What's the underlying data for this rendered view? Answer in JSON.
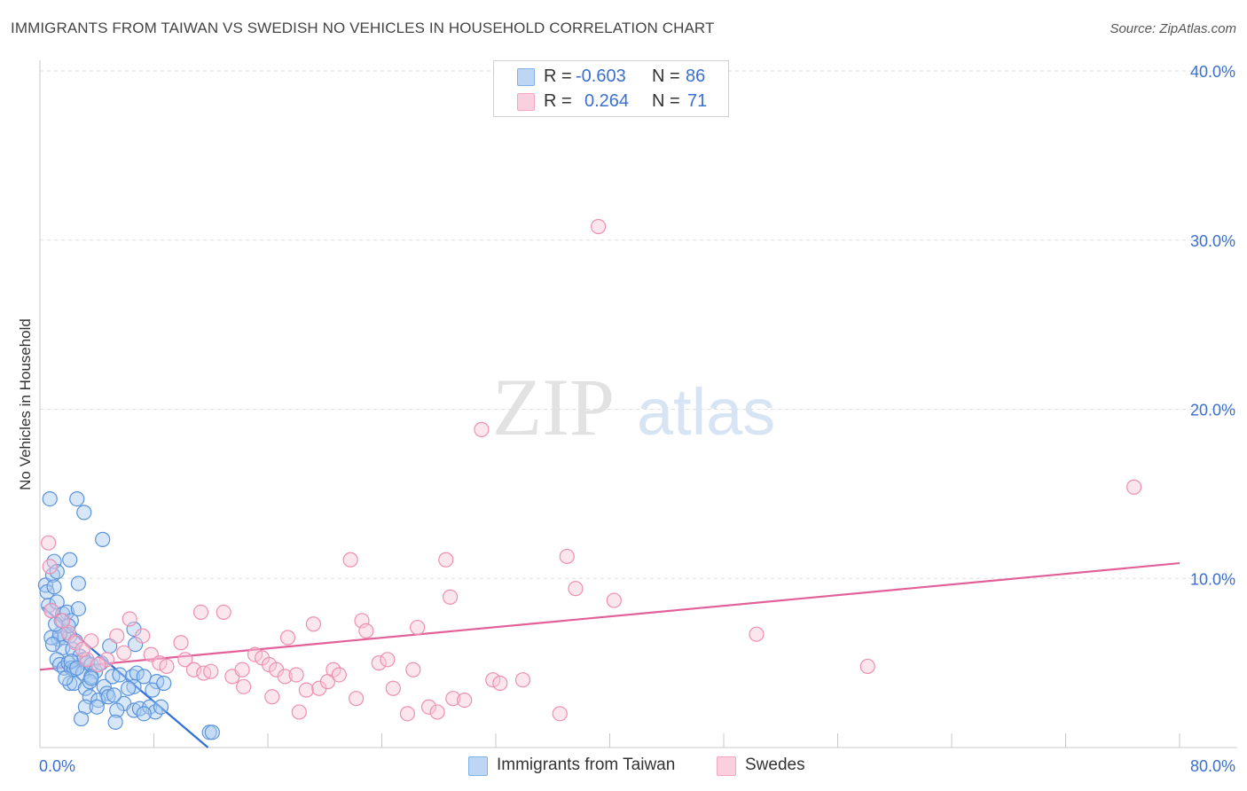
{
  "title": "IMMIGRANTS FROM TAIWAN VS SWEDISH NO VEHICLES IN HOUSEHOLD CORRELATION CHART",
  "source": "Source: ZipAtlas.com",
  "watermark": {
    "zip": "ZIP",
    "atlas": "atlas"
  },
  "legend": {
    "rows": [
      {
        "r_label": "R =",
        "r_value": "-0.603",
        "n_label": "N =",
        "n_value": "86",
        "color": "#7fb0e8"
      },
      {
        "r_label": "R =",
        "r_value": "0.264",
        "n_label": "N =",
        "n_value": "71",
        "color": "#f4a6c0"
      }
    ]
  },
  "bottom_legend": [
    {
      "label": "Immigrants from Taiwan",
      "color": "#7fb0e8"
    },
    {
      "label": "Swedes",
      "color": "#f4a6c0"
    }
  ],
  "chart_data": {
    "type": "scatter",
    "title": "IMMIGRANTS FROM TAIWAN VS SWEDISH NO VEHICLES IN HOUSEHOLD CORRELATION CHART",
    "xlabel": "",
    "ylabel": "No Vehicles in Household",
    "xlim": [
      0,
      80
    ],
    "ylim": [
      0,
      40
    ],
    "x_tick_labels": [
      {
        "value": 0,
        "label": "0.0%"
      },
      {
        "value": 80,
        "label": "80.0%"
      }
    ],
    "y_tick_labels": [
      {
        "value": 10,
        "label": "10.0%"
      },
      {
        "value": 20,
        "label": "20.0%"
      },
      {
        "value": 30,
        "label": "30.0%"
      },
      {
        "value": 40,
        "label": "40.0%"
      }
    ],
    "x_minor_ticks": [
      0,
      8,
      16,
      24,
      32,
      40,
      48,
      56,
      64,
      72,
      80
    ],
    "grid": true,
    "series": [
      {
        "name": "Immigrants from Taiwan",
        "stroke": "#5a93dc",
        "fill": "#a9c9f0",
        "trend": {
          "x": [
            0.2,
            11.8
          ],
          "y": [
            8.3,
            0.0
          ],
          "color": "#2f6fd6"
        },
        "points": [
          [
            0.4,
            9.6
          ],
          [
            0.5,
            9.2
          ],
          [
            0.6,
            8.4
          ],
          [
            0.8,
            8.1
          ],
          [
            0.9,
            10.2
          ],
          [
            1.0,
            11.0
          ],
          [
            0.7,
            14.7
          ],
          [
            1.2,
            10.4
          ],
          [
            1.0,
            9.5
          ],
          [
            1.2,
            8.6
          ],
          [
            1.6,
            7.9
          ],
          [
            1.9,
            8.0
          ],
          [
            2.2,
            7.5
          ],
          [
            2.7,
            8.2
          ],
          [
            2.7,
            9.7
          ],
          [
            2.6,
            14.7
          ],
          [
            3.1,
            13.9
          ],
          [
            2.1,
            11.1
          ],
          [
            4.4,
            12.3
          ],
          [
            1.3,
            6.4
          ],
          [
            1.7,
            6.5
          ],
          [
            2.1,
            6.6
          ],
          [
            1.6,
            5.9
          ],
          [
            2.3,
            5.8
          ],
          [
            2.5,
            6.3
          ],
          [
            2.8,
            5.4
          ],
          [
            3.1,
            5.2
          ],
          [
            3.3,
            5.0
          ],
          [
            1.2,
            5.2
          ],
          [
            1.4,
            4.9
          ],
          [
            1.7,
            4.7
          ],
          [
            2.0,
            5.0
          ],
          [
            2.2,
            4.7
          ],
          [
            2.4,
            4.6
          ],
          [
            3.0,
            4.4
          ],
          [
            3.6,
            4.9
          ],
          [
            3.9,
            4.5
          ],
          [
            3.6,
            4.2
          ],
          [
            2.1,
            3.8
          ],
          [
            2.4,
            3.8
          ],
          [
            3.2,
            3.5
          ],
          [
            3.5,
            3.9
          ],
          [
            4.5,
            3.6
          ],
          [
            4.7,
            3.2
          ],
          [
            3.5,
            3.0
          ],
          [
            4.1,
            2.8
          ],
          [
            4.8,
            3.0
          ],
          [
            3.2,
            2.4
          ],
          [
            4.0,
            2.4
          ],
          [
            5.1,
            4.2
          ],
          [
            5.6,
            4.3
          ],
          [
            6.5,
            4.2
          ],
          [
            6.8,
            4.4
          ],
          [
            7.3,
            4.2
          ],
          [
            6.6,
            3.6
          ],
          [
            6.2,
            3.5
          ],
          [
            8.2,
            3.9
          ],
          [
            7.9,
            3.4
          ],
          [
            5.9,
            2.6
          ],
          [
            6.6,
            2.2
          ],
          [
            7.0,
            2.3
          ],
          [
            7.7,
            2.4
          ],
          [
            8.1,
            2.1
          ],
          [
            8.5,
            2.4
          ],
          [
            5.4,
            2.2
          ],
          [
            2.9,
            1.7
          ],
          [
            5.3,
            1.5
          ],
          [
            6.7,
            6.1
          ],
          [
            4.9,
            6.0
          ],
          [
            6.6,
            7.0
          ],
          [
            11.9,
            0.9
          ],
          [
            12.1,
            0.9
          ],
          [
            1.5,
            7.5
          ],
          [
            2.0,
            7.2
          ],
          [
            0.8,
            6.5
          ],
          [
            1.4,
            6.7
          ],
          [
            2.2,
            5.1
          ],
          [
            2.6,
            4.7
          ],
          [
            3.6,
            4.1
          ],
          [
            4.3,
            5.0
          ],
          [
            5.2,
            3.1
          ],
          [
            7.3,
            2.0
          ],
          [
            8.7,
            3.8
          ],
          [
            1.8,
            4.1
          ],
          [
            0.9,
            6.1
          ],
          [
            1.1,
            7.3
          ]
        ]
      },
      {
        "name": "Swedes",
        "stroke": "#ee8fb0",
        "fill": "#f8c8d8",
        "trend": {
          "x": [
            0.0,
            80.0
          ],
          "y": [
            4.6,
            10.9
          ],
          "color": "#e2609a"
        },
        "points": [
          [
            39.2,
            30.8
          ],
          [
            31.0,
            18.8
          ],
          [
            76.8,
            15.4
          ],
          [
            0.6,
            12.1
          ],
          [
            0.7,
            10.7
          ],
          [
            0.8,
            8.1
          ],
          [
            2.0,
            6.8
          ],
          [
            2.5,
            6.2
          ],
          [
            3.3,
            5.2
          ],
          [
            3.6,
            6.3
          ],
          [
            4.7,
            5.2
          ],
          [
            5.4,
            6.6
          ],
          [
            6.3,
            7.6
          ],
          [
            7.2,
            6.6
          ],
          [
            7.8,
            5.5
          ],
          [
            8.4,
            5.0
          ],
          [
            8.9,
            4.8
          ],
          [
            9.9,
            6.2
          ],
          [
            10.2,
            5.2
          ],
          [
            10.8,
            4.6
          ],
          [
            11.5,
            4.4
          ],
          [
            11.3,
            8.0
          ],
          [
            12.0,
            4.5
          ],
          [
            12.9,
            8.0
          ],
          [
            13.5,
            4.2
          ],
          [
            14.2,
            4.6
          ],
          [
            14.3,
            3.6
          ],
          [
            15.1,
            5.5
          ],
          [
            15.6,
            5.3
          ],
          [
            16.1,
            4.9
          ],
          [
            16.3,
            3.0
          ],
          [
            16.6,
            4.6
          ],
          [
            17.2,
            4.2
          ],
          [
            17.4,
            6.5
          ],
          [
            18.0,
            4.3
          ],
          [
            18.2,
            2.1
          ],
          [
            18.7,
            3.4
          ],
          [
            19.2,
            7.3
          ],
          [
            19.6,
            3.5
          ],
          [
            20.2,
            3.9
          ],
          [
            20.6,
            4.6
          ],
          [
            21.0,
            4.3
          ],
          [
            21.8,
            11.1
          ],
          [
            22.2,
            2.9
          ],
          [
            22.6,
            7.5
          ],
          [
            22.9,
            6.9
          ],
          [
            23.8,
            5.0
          ],
          [
            24.4,
            5.2
          ],
          [
            24.8,
            3.5
          ],
          [
            25.8,
            2.0
          ],
          [
            26.2,
            4.6
          ],
          [
            26.5,
            7.1
          ],
          [
            27.3,
            2.4
          ],
          [
            27.9,
            2.1
          ],
          [
            28.5,
            11.1
          ],
          [
            28.8,
            8.9
          ],
          [
            29.0,
            2.9
          ],
          [
            29.8,
            2.8
          ],
          [
            31.8,
            4.0
          ],
          [
            32.3,
            3.8
          ],
          [
            33.9,
            4.0
          ],
          [
            36.5,
            2.0
          ],
          [
            37.0,
            11.3
          ],
          [
            37.6,
            9.4
          ],
          [
            40.3,
            8.7
          ],
          [
            50.3,
            6.7
          ],
          [
            58.1,
            4.8
          ],
          [
            3.0,
            5.8
          ],
          [
            1.6,
            7.5
          ],
          [
            4.1,
            4.9
          ],
          [
            5.9,
            5.6
          ]
        ]
      }
    ]
  }
}
